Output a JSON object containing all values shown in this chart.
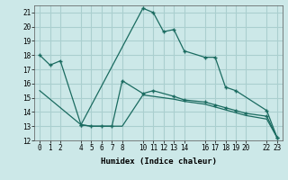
{
  "xlabel": "Humidex (Indice chaleur)",
  "background_color": "#cce8e8",
  "grid_color": "#aacfcf",
  "line_color": "#1a6b60",
  "xlim": [
    -0.5,
    23.5
  ],
  "ylim": [
    12,
    21.5
  ],
  "yticks": [
    12,
    13,
    14,
    15,
    16,
    17,
    18,
    19,
    20,
    21
  ],
  "xticks": [
    0,
    1,
    2,
    4,
    5,
    6,
    7,
    8,
    10,
    11,
    12,
    13,
    14,
    16,
    17,
    18,
    19,
    20,
    22,
    23
  ],
  "curve1_x": [
    0,
    1,
    2,
    4,
    10,
    11,
    12,
    13,
    14,
    16,
    17,
    18,
    19,
    22,
    23
  ],
  "curve1_y": [
    18,
    17.3,
    17.6,
    13.1,
    21.3,
    21.0,
    19.65,
    19.8,
    18.3,
    17.85,
    17.85,
    15.75,
    15.5,
    14.1,
    12.2
  ],
  "curve2_x": [
    4,
    5,
    6,
    7,
    8,
    10,
    11,
    13,
    14,
    16,
    17,
    18,
    19,
    20,
    22,
    23
  ],
  "curve2_y": [
    13.1,
    13.0,
    13.0,
    13.0,
    16.2,
    15.3,
    15.5,
    15.1,
    14.85,
    14.7,
    14.5,
    14.3,
    14.1,
    13.9,
    13.7,
    12.2
  ],
  "curve3_x": [
    0,
    4,
    5,
    6,
    7,
    8,
    10,
    11,
    12,
    13,
    14,
    16,
    17,
    18,
    19,
    20,
    22,
    23
  ],
  "curve3_y": [
    15.5,
    13.1,
    13.0,
    13.0,
    13.0,
    13.0,
    15.2,
    15.1,
    15.0,
    14.9,
    14.75,
    14.55,
    14.35,
    14.15,
    13.95,
    13.75,
    13.5,
    12.2
  ]
}
